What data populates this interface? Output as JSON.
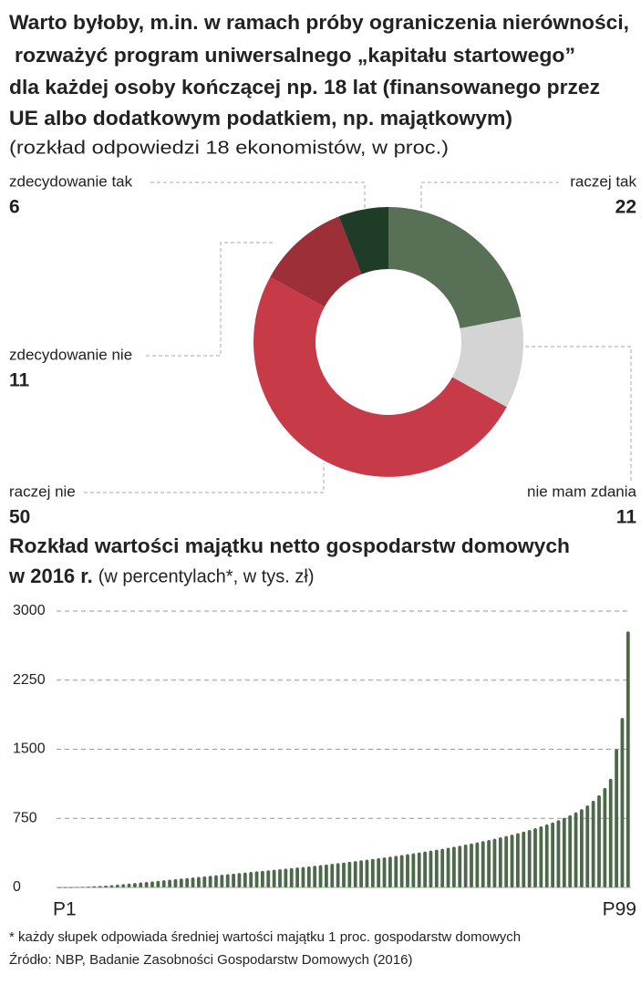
{
  "chart_data": [
    {
      "type": "donut",
      "title": [
        "Warto byłoby, m.in. w ramach próby ograniczenia nierówności,",
        "rozważyć program uniwersalnego „kapitału startowego”",
        "dla każdej osoby kończącej np. 18 lat (finansowanego przez",
        "UE albo dodatkowym podatkiem, np. majątkowym)"
      ],
      "subtitle": "(rozkład odpowiedzi 18 ekonomistów, w proc.)",
      "categories": [
        "raczej tak",
        "nie mam zdania",
        "raczej nie",
        "zdecydowanie nie",
        "zdecydowanie tak"
      ],
      "values": [
        22,
        11,
        50,
        11,
        6
      ],
      "colors": [
        "#587156",
        "#d4d4d4",
        "#c73a48",
        "#9c2f37",
        "#1f3c27"
      ]
    },
    {
      "type": "bar",
      "title": [
        "Rozkład wartości majątku netto gospodarstw domowych",
        "w 2016 r."
      ],
      "subtitle": "(w percentylach*, w tys. zł)",
      "categories": [
        "P1",
        null,
        null,
        null,
        null,
        null,
        null,
        null,
        null,
        null,
        null,
        null,
        null,
        null,
        null,
        null,
        null,
        null,
        null,
        null,
        null,
        null,
        null,
        null,
        null,
        null,
        null,
        null,
        null,
        null,
        null,
        null,
        null,
        null,
        null,
        null,
        null,
        null,
        null,
        null,
        null,
        null,
        null,
        null,
        null,
        null,
        null,
        null,
        null,
        null,
        null,
        null,
        null,
        null,
        null,
        null,
        null,
        null,
        null,
        null,
        null,
        null,
        null,
        null,
        null,
        null,
        null,
        null,
        null,
        null,
        null,
        null,
        null,
        null,
        null,
        null,
        null,
        null,
        null,
        null,
        null,
        null,
        null,
        null,
        null,
        null,
        null,
        null,
        null,
        null,
        null,
        null,
        null,
        null,
        null,
        null,
        null,
        null,
        "P99"
      ],
      "values": [
        0,
        1,
        2,
        4,
        6,
        9,
        12,
        16,
        20,
        25,
        30,
        36,
        42,
        48,
        54,
        60,
        66,
        72,
        78,
        84,
        90,
        96,
        102,
        108,
        114,
        120,
        126,
        132,
        138,
        144,
        150,
        156,
        162,
        168,
        174,
        180,
        186,
        192,
        198,
        204,
        210,
        216,
        222,
        228,
        235,
        242,
        249,
        256,
        263,
        270,
        278,
        286,
        294,
        302,
        310,
        318,
        326,
        334,
        343,
        352,
        361,
        370,
        380,
        390,
        400,
        410,
        420,
        431,
        442,
        453,
        465,
        477,
        489,
        502,
        515,
        529,
        543,
        558,
        573,
        589,
        606,
        624,
        643,
        663,
        684,
        706,
        730,
        756,
        784,
        815,
        850,
        890,
        940,
        1000,
        1080,
        1180,
        1500,
        1840,
        2780
      ],
      "color": "#4c6a4a",
      "ylim": [
        0,
        3000
      ],
      "yticks": [
        0,
        750,
        1500,
        2250,
        3000
      ],
      "grid": true
    }
  ],
  "footnote": "* każdy słupek odpowiada średniej wartości majątku 1 proc. gospodarstw domowych",
  "source": "Źródło: NBP, Badanie Zasobności Gospodarstw Domowych (2016)"
}
